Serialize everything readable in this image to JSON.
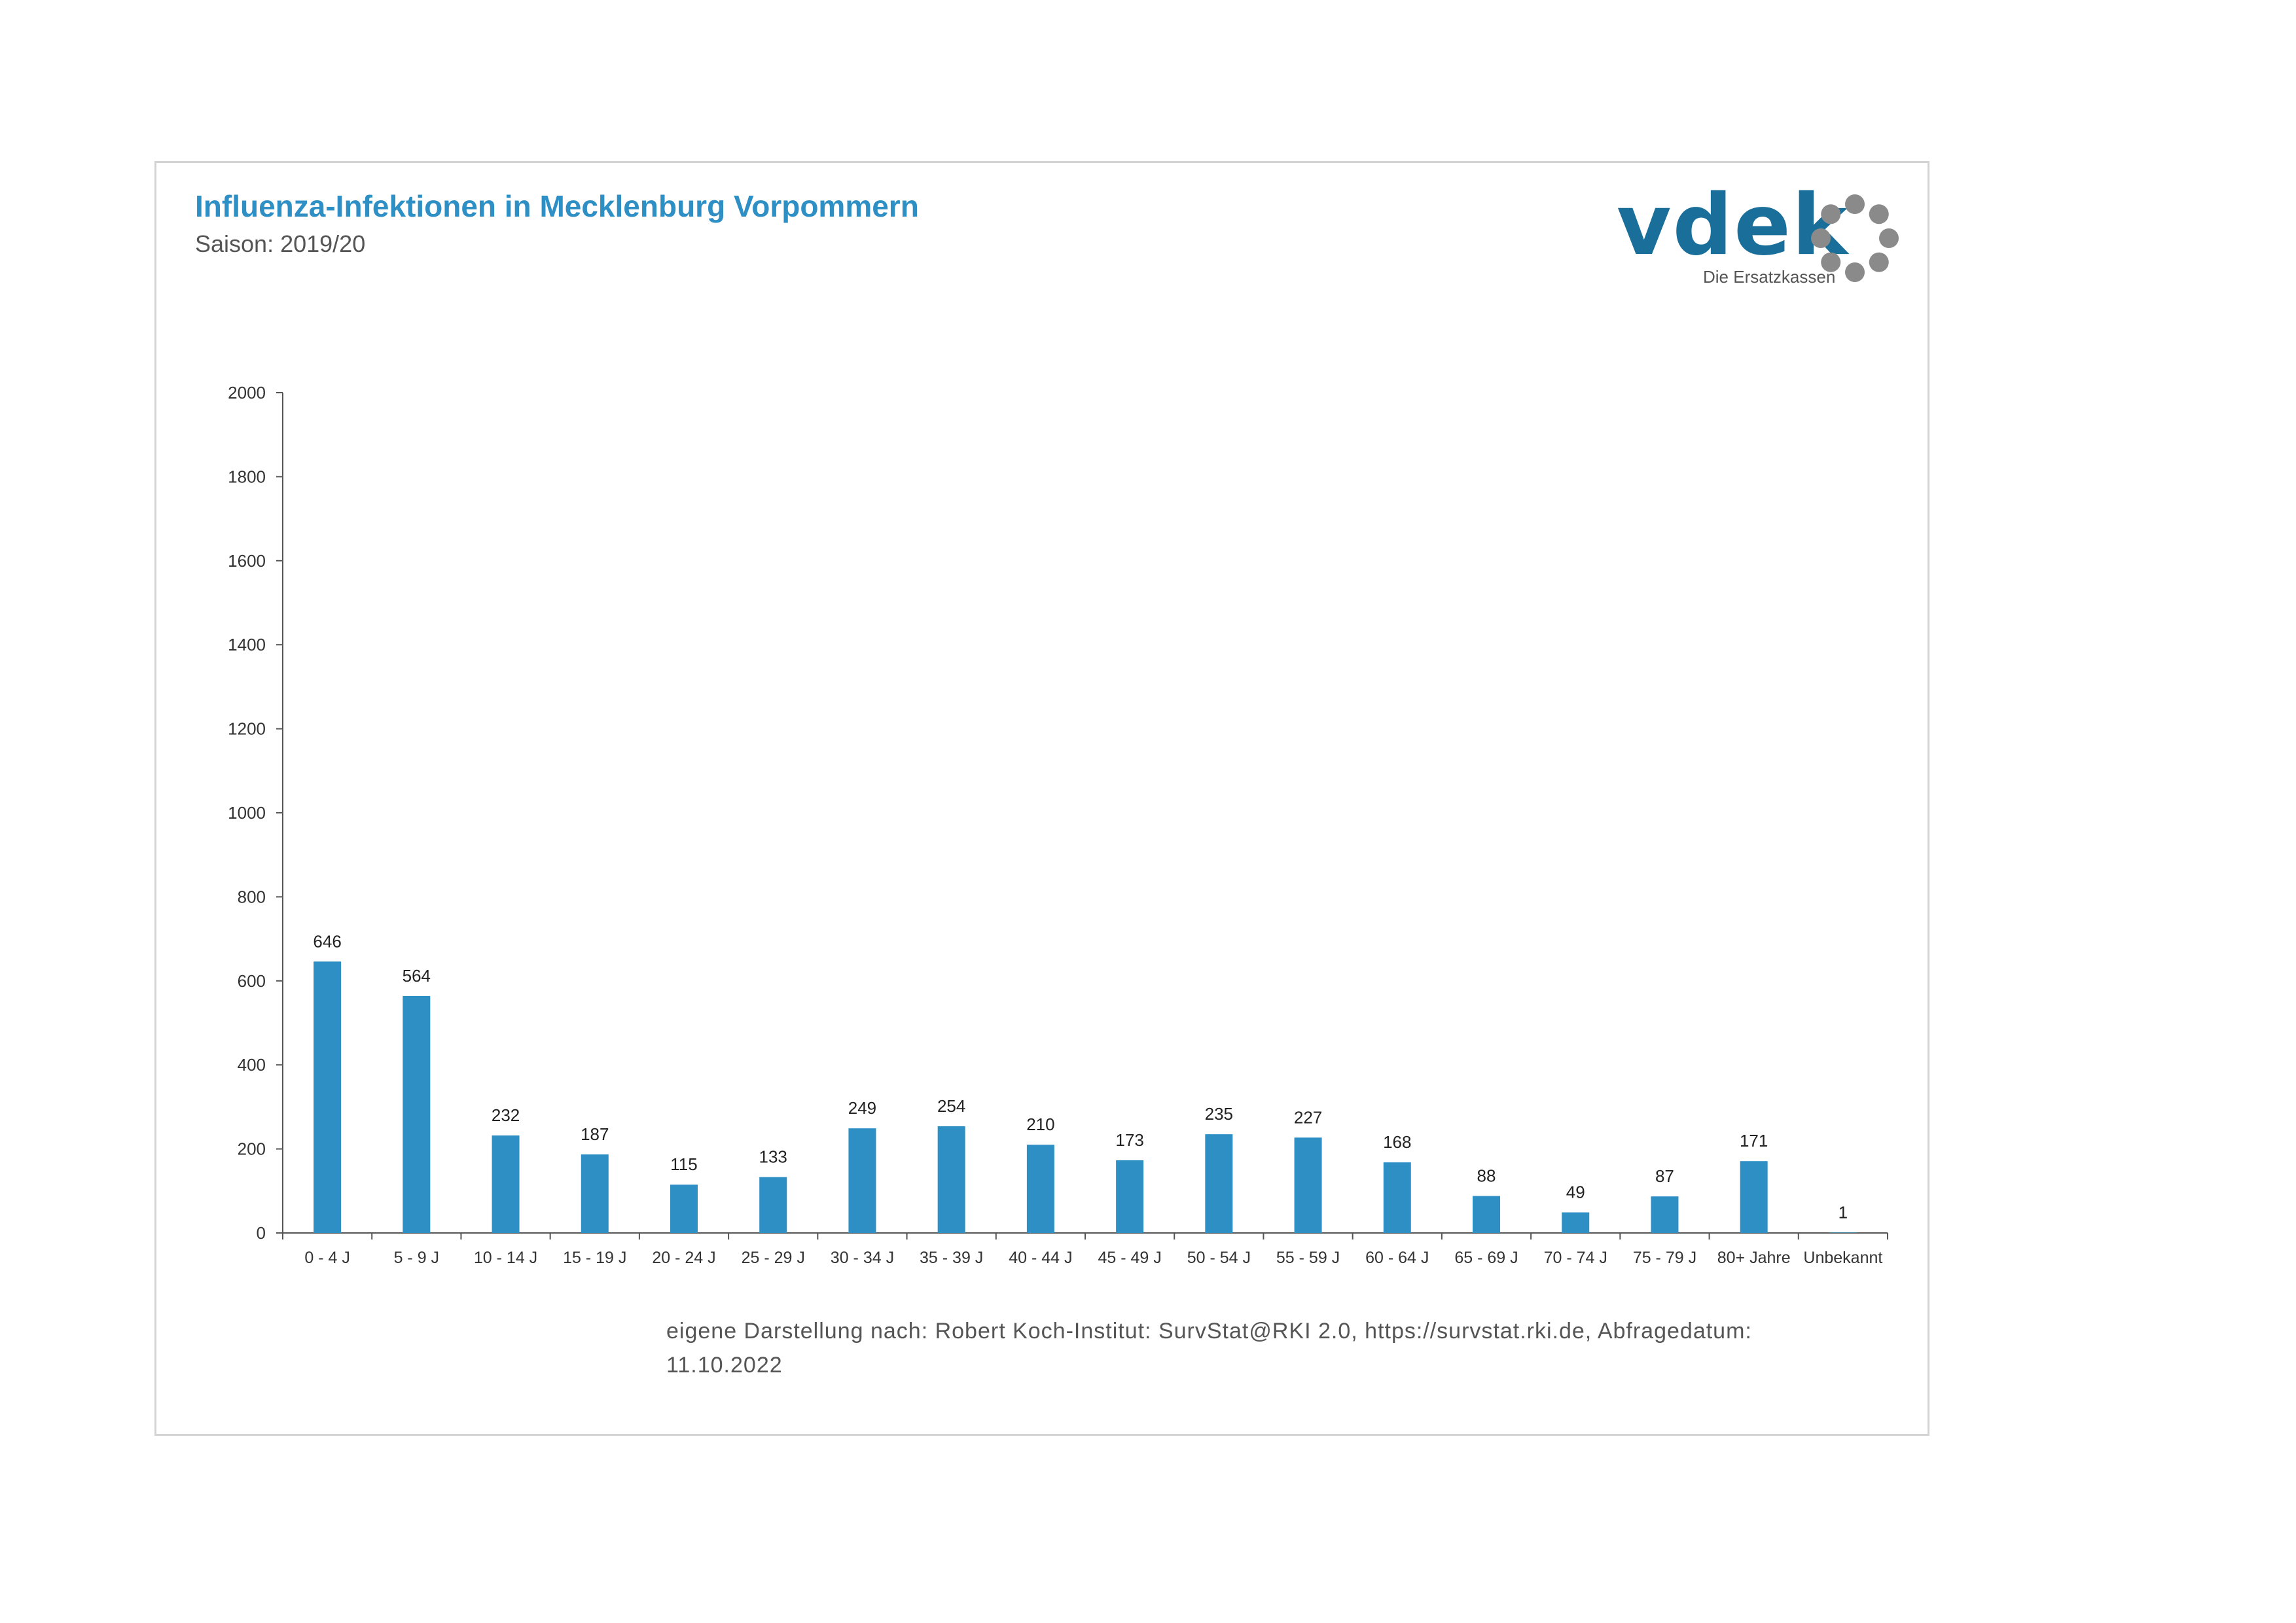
{
  "header": {
    "title": "Influenza-Infektionen in Mecklenburg Vorpommern",
    "subtitle": "Saison: 2019/20"
  },
  "logo": {
    "wordmark": "vdek",
    "tagline": "Die Ersatzkassen",
    "color": "#1a6f9a",
    "ring_color": "#8a8a8a"
  },
  "colors": {
    "bar": "#2e8fc5",
    "title": "#2e8fc5",
    "text": "#555555",
    "axis": "#555555",
    "frame": "#d4d4d4"
  },
  "chart_data": {
    "type": "bar",
    "title": "Influenza-Infektionen in Mecklenburg Vorpommern",
    "subtitle": "Saison: 2019/20",
    "xlabel": "",
    "ylabel": "",
    "ylim": [
      0,
      2000
    ],
    "yticks": [
      0,
      200,
      400,
      600,
      800,
      1000,
      1200,
      1400,
      1600,
      1800,
      2000
    ],
    "grid": false,
    "legend": "none",
    "categories": [
      "0 - 4 J",
      "5 - 9 J",
      "10 - 14 J",
      "15 - 19 J",
      "20 - 24 J",
      "25 - 29 J",
      "30 - 34 J",
      "35 - 39 J",
      "40 - 44 J",
      "45 - 49 J",
      "50 - 54 J",
      "55 - 59 J",
      "60 - 64 J",
      "65 - 69 J",
      "70 - 74 J",
      "75 - 79 J",
      "80+ Jahre",
      "Unbekannt"
    ],
    "values": [
      646,
      564,
      232,
      187,
      115,
      133,
      249,
      254,
      210,
      173,
      235,
      227,
      168,
      88,
      49,
      87,
      171,
      1
    ]
  },
  "source": {
    "text": "eigene Darstellung nach: Robert Koch-Institut: SurvStat@RKI 2.0, https://survstat.rki.de, Abfragedatum: 11.10.2022"
  }
}
